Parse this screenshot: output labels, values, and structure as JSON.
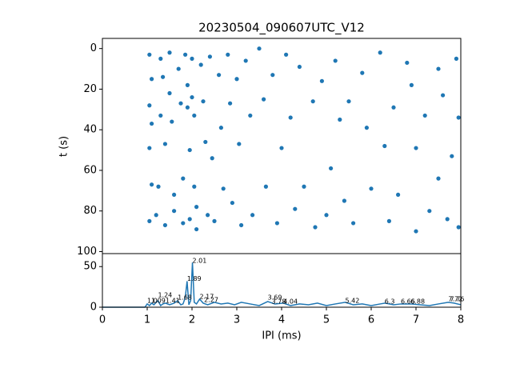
{
  "chart_data": [
    {
      "type": "scatter",
      "title": "20230504_090607UTC_V12",
      "y_label": "t (s)",
      "color": "#1f77b4",
      "xlim": [
        0,
        8
      ],
      "ylim": [
        101,
        -5
      ],
      "yticks": [
        0,
        20,
        40,
        60,
        80,
        100
      ],
      "x": [
        1.05,
        1.1,
        1.05,
        1.1,
        1.05,
        1.1,
        1.05,
        1.2,
        1.25,
        1.3,
        1.35,
        1.3,
        1.4,
        1.4,
        1.5,
        1.5,
        1.55,
        1.6,
        1.6,
        1.7,
        1.75,
        1.8,
        1.8,
        1.85,
        1.9,
        1.9,
        1.95,
        1.95,
        2.0,
        2.0,
        2.05,
        2.05,
        2.1,
        2.1,
        2.2,
        2.25,
        2.3,
        2.35,
        2.4,
        2.45,
        2.5,
        2.6,
        2.65,
        2.7,
        2.8,
        2.85,
        2.9,
        3.0,
        3.05,
        3.1,
        3.2,
        3.3,
        3.35,
        3.5,
        3.6,
        3.65,
        3.8,
        3.9,
        4.0,
        4.1,
        4.2,
        4.3,
        4.4,
        4.5,
        4.7,
        4.75,
        4.9,
        5.0,
        5.1,
        5.2,
        5.3,
        5.4,
        5.5,
        5.6,
        5.8,
        5.9,
        6.0,
        6.2,
        6.3,
        6.4,
        6.5,
        6.6,
        6.8,
        6.9,
        7.0,
        7.0,
        7.2,
        7.3,
        7.5,
        7.5,
        7.6,
        7.7,
        7.8,
        7.9,
        7.95,
        7.95
      ],
      "values": [
        3,
        15,
        28,
        37,
        49,
        67,
        85,
        82,
        68,
        5,
        14,
        33,
        47,
        87,
        2,
        22,
        36,
        72,
        80,
        10,
        27,
        64,
        86,
        3,
        18,
        29,
        50,
        84,
        5,
        24,
        33,
        68,
        78,
        89,
        8,
        26,
        46,
        82,
        4,
        54,
        85,
        13,
        39,
        69,
        3,
        27,
        76,
        15,
        47,
        87,
        6,
        33,
        82,
        0,
        25,
        68,
        13,
        86,
        49,
        3,
        34,
        79,
        9,
        68,
        26,
        88,
        16,
        82,
        59,
        6,
        35,
        75,
        26,
        86,
        12,
        39,
        69,
        2,
        48,
        85,
        29,
        72,
        7,
        18,
        49,
        90,
        33,
        80,
        10,
        64,
        23,
        84,
        53,
        5,
        34,
        88
      ]
    },
    {
      "type": "line",
      "x_label": "IPI (ms)",
      "color": "#1f77b4",
      "xlim": [
        0,
        8
      ],
      "xticks": [
        0,
        1,
        2,
        3,
        4,
        5,
        6,
        7,
        8
      ],
      "ylim": [
        0,
        66
      ],
      "yticks": [
        0,
        50
      ],
      "x": [
        0,
        0.95,
        1.0,
        1.05,
        1.1,
        1.15,
        1.2,
        1.24,
        1.3,
        1.35,
        1.41,
        1.5,
        1.6,
        1.68,
        1.75,
        1.8,
        1.85,
        1.89,
        1.93,
        1.97,
        2.01,
        2.05,
        2.1,
        2.17,
        2.25,
        2.35,
        2.5,
        2.65,
        2.8,
        2.95,
        3.1,
        3.3,
        3.5,
        3.69,
        3.85,
        4.04,
        4.2,
        4.4,
        4.6,
        4.8,
        5.0,
        5.2,
        5.42,
        5.6,
        5.8,
        6.0,
        6.2,
        6.31,
        6.5,
        6.66,
        6.88,
        7.1,
        7.3,
        7.5,
        7.72,
        7.85,
        8.0
      ],
      "values": [
        0,
        0,
        4,
        2,
        5,
        3,
        6,
        8,
        2,
        4,
        5,
        3,
        5,
        8,
        3,
        4,
        12,
        32,
        3,
        8,
        55,
        6,
        4,
        10,
        5,
        3,
        6,
        4,
        5,
        3,
        6,
        4,
        2,
        7,
        4,
        5,
        2,
        4,
        3,
        5,
        2,
        4,
        6,
        3,
        4,
        2,
        4,
        5,
        3,
        4,
        4,
        3,
        2,
        4,
        6,
        5,
        3
      ],
      "annotations": [
        {
          "text": "1.0",
          "x": 1.0,
          "y": 8
        },
        {
          "text": "1.09",
          "x": 1.09,
          "y": 8
        },
        {
          "text": "1.24",
          "x": 1.24,
          "y": 15
        },
        {
          "text": "1.41",
          "x": 1.41,
          "y": 8
        },
        {
          "text": "1.68",
          "x": 1.68,
          "y": 12
        },
        {
          "text": "1.89",
          "x": 1.89,
          "y": 35
        },
        {
          "text": "2.01",
          "x": 2.01,
          "y": 57
        },
        {
          "text": "2.17",
          "x": 2.17,
          "y": 13
        },
        {
          "text": "2.27",
          "x": 2.27,
          "y": 9
        },
        {
          "text": "3.69",
          "x": 3.69,
          "y": 12
        },
        {
          "text": "3.78",
          "x": 3.78,
          "y": 7
        },
        {
          "text": "4.04",
          "x": 4.04,
          "y": 7
        },
        {
          "text": "5.42",
          "x": 5.42,
          "y": 8
        },
        {
          "text": "6.3",
          "x": 6.3,
          "y": 7
        },
        {
          "text": "6.66",
          "x": 6.66,
          "y": 7
        },
        {
          "text": "6.88",
          "x": 6.88,
          "y": 7
        },
        {
          "text": "7.72",
          "x": 7.72,
          "y": 10
        },
        {
          "text": "7.76",
          "x": 7.76,
          "y": 10
        }
      ]
    }
  ]
}
